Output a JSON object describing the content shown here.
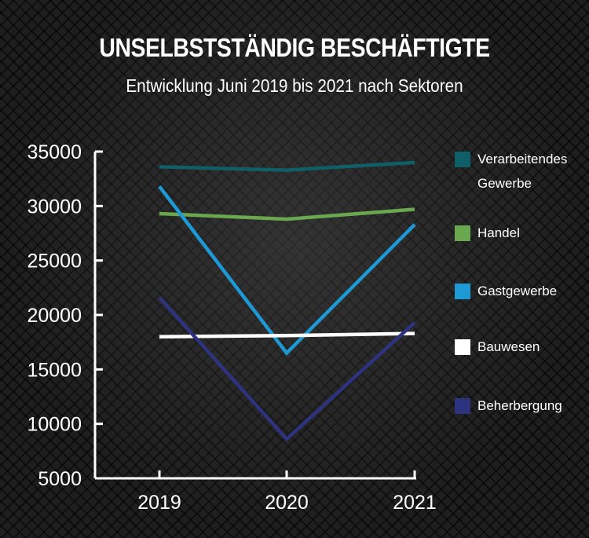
{
  "chart_data": {
    "type": "line",
    "title": "UNSELBSTSTÄNDIG BESCHÄFTIGTE",
    "subtitle": "Entwicklung Juni 2019 bis 2021 nach Sektoren",
    "xlabel": "",
    "ylabel": "",
    "x": [
      "2019",
      "2020",
      "2021"
    ],
    "ylim": [
      5000,
      35000
    ],
    "yticks": [
      "35000",
      "30000",
      "25000",
      "20000",
      "15000",
      "10000",
      "5000"
    ],
    "grid": false,
    "legend_position": "right",
    "series": [
      {
        "name": "Verarbeitendes Gewerbe",
        "color": "#0f5f68",
        "values": [
          33600,
          33300,
          34000
        ]
      },
      {
        "name": "Handel",
        "color": "#6aa84f",
        "values": [
          29300,
          28800,
          29700
        ]
      },
      {
        "name": "Gastgewerbe",
        "color": "#1d9ad6",
        "values": [
          31800,
          16500,
          28300
        ]
      },
      {
        "name": "Bauwesen",
        "color": "#ffffff",
        "values": [
          18000,
          18100,
          18300
        ]
      },
      {
        "name": "Beherbergung",
        "color": "#2e3380",
        "values": [
          21600,
          8600,
          19300
        ]
      }
    ]
  }
}
